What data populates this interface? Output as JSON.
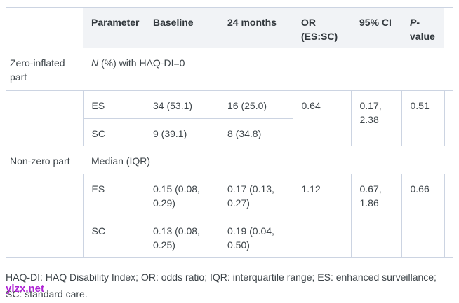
{
  "table": {
    "header": {
      "parameter": "Parameter",
      "baseline": "Baseline",
      "months24": "24 months",
      "or": "OR (ES:SC)",
      "ci": "95% CI",
      "p_italic": "P",
      "p_rest": "-value"
    },
    "sections": [
      {
        "label": "Zero-inflated part",
        "measure_italic": "N",
        "measure_rest": " (%) with HAQ-DI=0",
        "rows": [
          {
            "parameter": "ES",
            "baseline": "34 (53.1)",
            "months24": "16 (25.0)"
          },
          {
            "parameter": "SC",
            "baseline": "9 (39.1)",
            "months24": "8 (34.8)"
          }
        ],
        "or": "0.64",
        "ci": "0.17, 2.38",
        "p": "0.51"
      },
      {
        "label": "Non-zero part",
        "measure_italic": "",
        "measure_rest": "Median (IQR)",
        "rows": [
          {
            "parameter": "ES",
            "baseline": "0.15 (0.08, 0.29)",
            "months24": "0.17 (0.13, 0.27)"
          },
          {
            "parameter": "SC",
            "baseline": "0.13 (0.08, 0.25)",
            "months24": "0.19 (0.04, 0.50)"
          }
        ],
        "or": "1.12",
        "ci": "0.67, 1.86",
        "p": "0.66"
      }
    ]
  },
  "footnote": "HAQ-DI: HAQ Disability Index; OR: odds ratio; IQR: interquartile range; ES: enhanced surveillance; SC: standard care.",
  "watermark": "ylzx.net",
  "colors": {
    "header_bg": "#f1f3f6",
    "border": "#ccd4e2",
    "text": "#3d4449",
    "header_text": "#32383d",
    "watermark": "#ae22d4"
  }
}
